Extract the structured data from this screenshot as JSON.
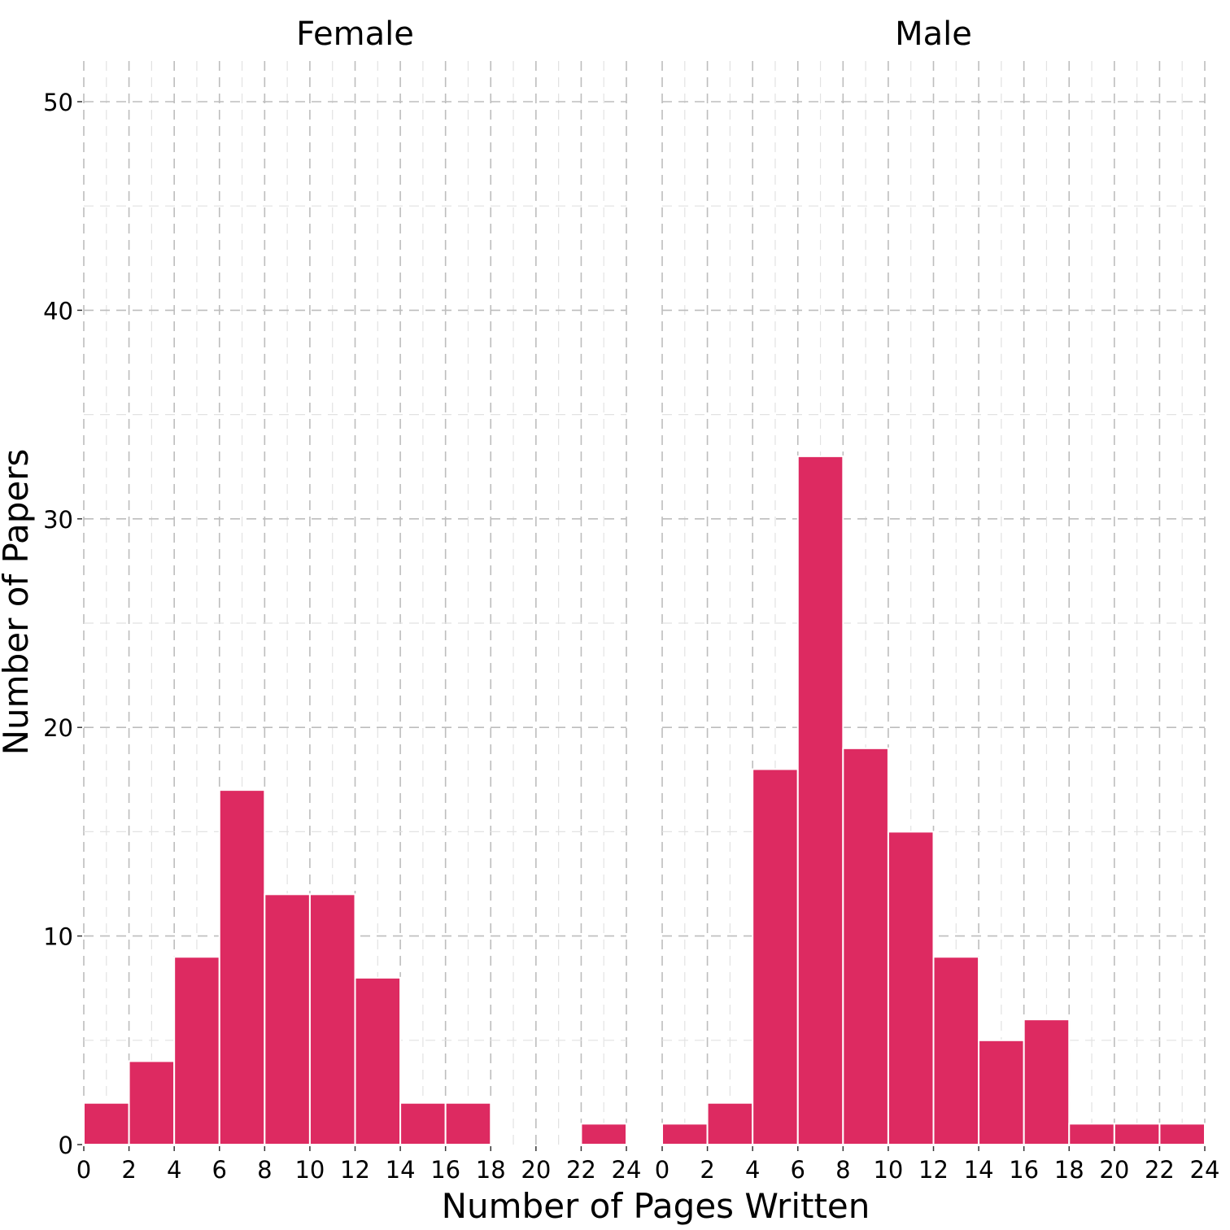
{
  "chart_data": {
    "type": "bar",
    "chart_kind": "faceted histogram",
    "bar_color": "#DD2A61",
    "xlabel": "Number of Pages Written",
    "ylabel": "Number of Papers",
    "xlim": [
      0,
      24
    ],
    "ylim": [
      0,
      50
    ],
    "x_ticks": [
      0,
      2,
      4,
      6,
      8,
      10,
      12,
      14,
      16,
      18,
      20,
      22,
      24
    ],
    "y_ticks": [
      0,
      10,
      20,
      30,
      40,
      50
    ],
    "grid": true,
    "bin_width": 2,
    "panels": [
      {
        "label": "Female",
        "bins": [
          {
            "x0": 0,
            "x1": 2,
            "count": 2
          },
          {
            "x0": 2,
            "x1": 4,
            "count": 4
          },
          {
            "x0": 4,
            "x1": 6,
            "count": 9
          },
          {
            "x0": 6,
            "x1": 8,
            "count": 17
          },
          {
            "x0": 8,
            "x1": 10,
            "count": 12
          },
          {
            "x0": 10,
            "x1": 12,
            "count": 12
          },
          {
            "x0": 12,
            "x1": 14,
            "count": 8
          },
          {
            "x0": 14,
            "x1": 16,
            "count": 2
          },
          {
            "x0": 16,
            "x1": 18,
            "count": 2
          },
          {
            "x0": 18,
            "x1": 20,
            "count": 0
          },
          {
            "x0": 20,
            "x1": 22,
            "count": 0
          },
          {
            "x0": 22,
            "x1": 24,
            "count": 1
          }
        ]
      },
      {
        "label": "Male",
        "bins": [
          {
            "x0": 0,
            "x1": 2,
            "count": 1
          },
          {
            "x0": 2,
            "x1": 4,
            "count": 2
          },
          {
            "x0": 4,
            "x1": 6,
            "count": 18
          },
          {
            "x0": 6,
            "x1": 8,
            "count": 33
          },
          {
            "x0": 8,
            "x1": 10,
            "count": 19
          },
          {
            "x0": 10,
            "x1": 12,
            "count": 15
          },
          {
            "x0": 12,
            "x1": 14,
            "count": 9
          },
          {
            "x0": 14,
            "x1": 16,
            "count": 5
          },
          {
            "x0": 16,
            "x1": 18,
            "count": 6
          },
          {
            "x0": 18,
            "x1": 20,
            "count": 1
          },
          {
            "x0": 20,
            "x1": 22,
            "count": 1
          },
          {
            "x0": 22,
            "x1": 24,
            "count": 1
          }
        ]
      }
    ]
  }
}
